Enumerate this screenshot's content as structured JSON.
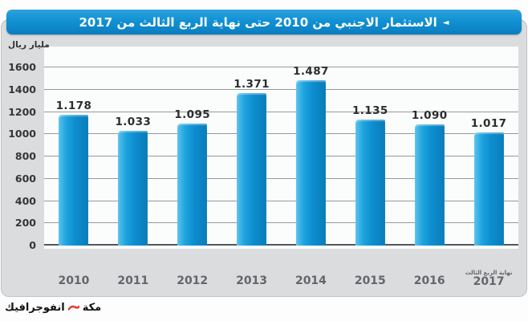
{
  "title": {
    "arrow": "◄",
    "text": "الاستثمار الاجنبي من 2010 حتى نهاية الربع الثالث من 2017"
  },
  "y_unit_label": "مليار ريال",
  "chart_data": {
    "type": "bar",
    "title": "الاستثمار الاجنبي من 2010 حتى نهاية الربع الثالث من 2017",
    "ylabel": "مليار ريال",
    "xlabel": "",
    "categories": [
      "2010",
      "2011",
      "2012",
      "2013",
      "2014",
      "2015",
      "2016",
      "2017"
    ],
    "last_category_note": "نهاية الربع الثالث",
    "values": [
      1178,
      1033,
      1095,
      1371,
      1487,
      1135,
      1090,
      1017
    ],
    "value_labels": [
      "1.178",
      "1.033",
      "1.095",
      "1.371",
      "1.487",
      "1.135",
      "1.090",
      "1.017"
    ],
    "yticks": [
      0,
      200,
      400,
      600,
      800,
      1000,
      1200,
      1400,
      1600
    ],
    "ylim": [
      0,
      1600
    ],
    "grid": "horizontal",
    "legend": "none",
    "bar_color": "#0d8ed0"
  },
  "footer": {
    "credit_label": "انفوجرافيك",
    "credit_brand": "مكة"
  },
  "colors": {
    "title_bar_blue": "#1191d3",
    "bar_blue": "#0d8ed0",
    "bar_highlight": "#5bc3ee",
    "panel_gray": "#dadcdd",
    "plot_white": "#fbfcfc",
    "accent_red": "#e8332a",
    "text_dark": "#2b2d2f"
  }
}
